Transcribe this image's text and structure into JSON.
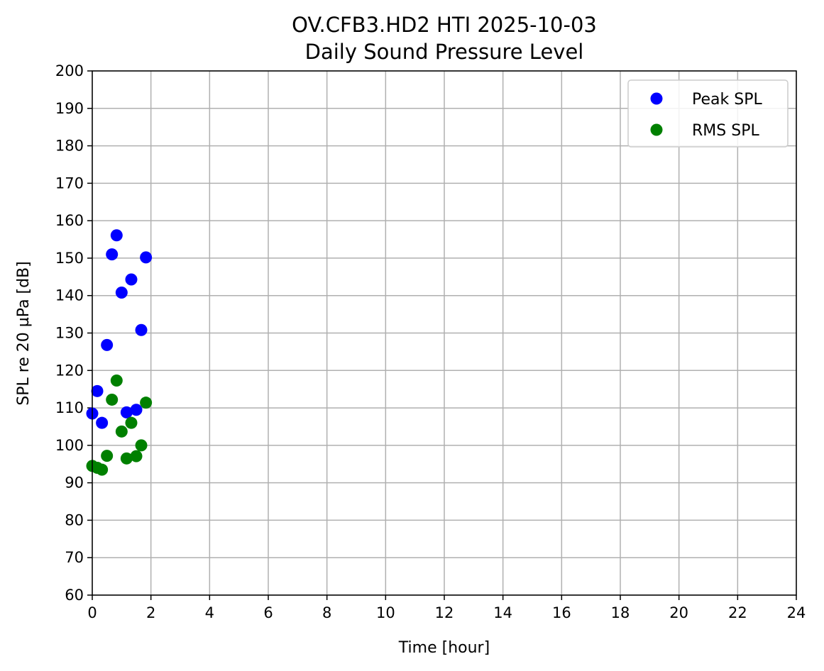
{
  "chart_data": {
    "type": "scatter",
    "title": "OV.CFB3.HD2 HTI 2025-10-03",
    "subtitle": "Daily Sound Pressure Level",
    "xlabel": "Time [hour]",
    "ylabel": "SPL re 20 µPa [dB]",
    "xlim": [
      0,
      24
    ],
    "ylim": [
      60,
      200
    ],
    "xticks": [
      0,
      2,
      4,
      6,
      8,
      10,
      12,
      14,
      16,
      18,
      20,
      22,
      24
    ],
    "yticks": [
      60,
      70,
      80,
      90,
      100,
      110,
      120,
      130,
      140,
      150,
      160,
      170,
      180,
      190,
      200
    ],
    "grid": true,
    "legend_position": "top-right",
    "series": [
      {
        "name": "Peak SPL",
        "color": "#0000ff",
        "x": [
          0.0,
          0.17,
          0.33,
          0.5,
          0.67,
          0.83,
          1.0,
          1.17,
          1.33,
          1.5,
          1.67,
          1.83
        ],
        "y": [
          108.5,
          114.5,
          106.0,
          126.8,
          151.0,
          156.1,
          140.8,
          108.8,
          144.3,
          109.5,
          130.8,
          150.2
        ]
      },
      {
        "name": "RMS SPL",
        "color": "#008000",
        "x": [
          0.0,
          0.17,
          0.33,
          0.5,
          0.67,
          0.83,
          1.0,
          1.17,
          1.33,
          1.5,
          1.67,
          1.83
        ],
        "y": [
          94.5,
          94.0,
          93.5,
          97.2,
          112.2,
          117.3,
          103.7,
          96.5,
          106.0,
          97.1,
          100.0,
          111.4
        ]
      }
    ]
  }
}
